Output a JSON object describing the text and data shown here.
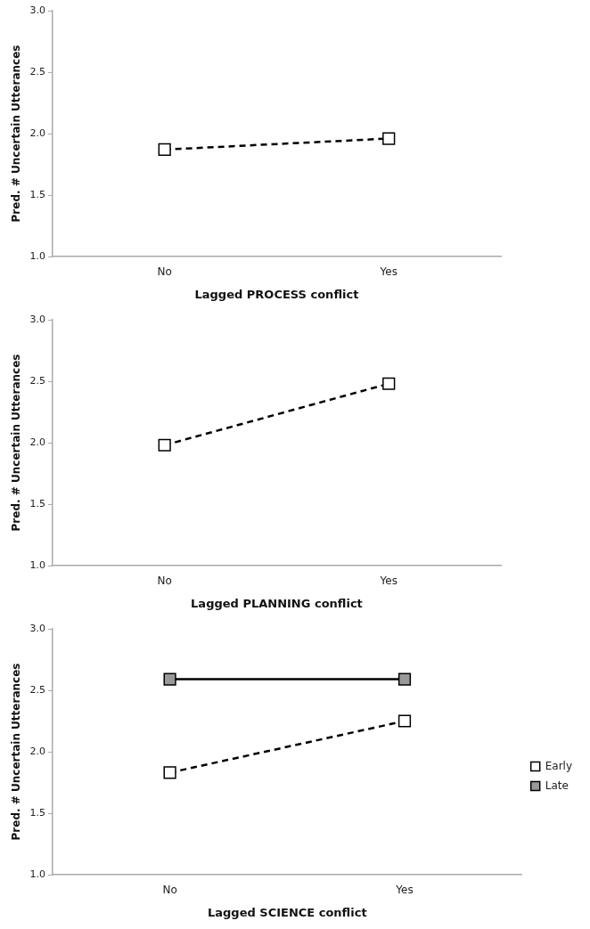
{
  "chart_data": [
    {
      "type": "line",
      "xlabel": "Lagged PROCESS conflict",
      "ylabel": "Pred. # Uncertain Utterances",
      "categories": [
        "No",
        "Yes"
      ],
      "series": [
        {
          "color": "#ffffff",
          "values": [
            1.87,
            1.96
          ],
          "line_style": "dashed",
          "marker": "square"
        }
      ],
      "ylim": [
        1.0,
        3.0
      ],
      "yticks": [
        {
          "value": 1.0,
          "label": "1.0"
        },
        {
          "value": 1.5,
          "label": "1.5"
        },
        {
          "value": 2.0,
          "label": "2.0"
        },
        {
          "value": 2.5,
          "label": "2.5"
        },
        {
          "value": 3.0,
          "label": "3.0"
        }
      ],
      "grid": false,
      "legend": false
    },
    {
      "type": "line",
      "xlabel": "Lagged PLANNING conflict",
      "ylabel": "Pred. # Uncertain Utterances",
      "categories": [
        "No",
        "Yes"
      ],
      "series": [
        {
          "color": "#ffffff",
          "values": [
            1.98,
            2.48
          ],
          "line_style": "dashed",
          "marker": "square"
        }
      ],
      "ylim": [
        1.0,
        3.0
      ],
      "yticks": [
        {
          "value": 1.0,
          "label": "1.0"
        },
        {
          "value": 1.5,
          "label": "1.5"
        },
        {
          "value": 2.0,
          "label": "2.0"
        },
        {
          "value": 2.5,
          "label": "2.5"
        },
        {
          "value": 3.0,
          "label": "3.0"
        }
      ],
      "grid": false,
      "legend": false
    },
    {
      "type": "line",
      "xlabel": "Lagged SCIENCE conflict",
      "ylabel": "Pred. # Uncertain Utterances",
      "categories": [
        "No",
        "Yes"
      ],
      "series": [
        {
          "name": "Early",
          "color": "#ffffff",
          "values": [
            1.83,
            2.25
          ],
          "line_style": "dashed",
          "marker": "square"
        },
        {
          "name": "Late",
          "color": "#999999",
          "values": [
            2.59,
            2.59
          ],
          "line_style": "solid",
          "marker": "square"
        }
      ],
      "ylim": [
        1.0,
        3.0
      ],
      "yticks": [
        {
          "value": 1.0,
          "label": "1.0"
        },
        {
          "value": 1.5,
          "label": "1.5"
        },
        {
          "value": 2.0,
          "label": "2.0"
        },
        {
          "value": 2.5,
          "label": "2.5"
        },
        {
          "value": 3.0,
          "label": "3.0"
        }
      ],
      "grid": false,
      "legend": "right"
    }
  ]
}
